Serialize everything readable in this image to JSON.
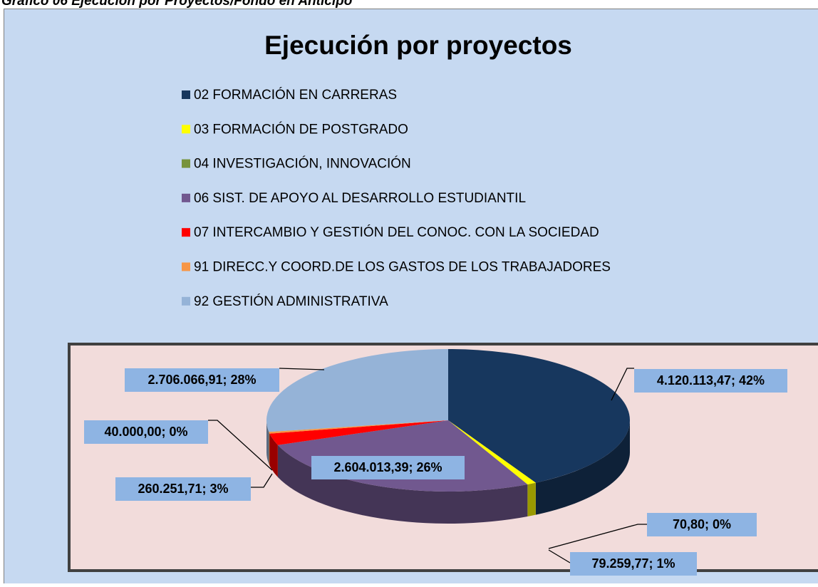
{
  "caption": "Gráfico 06 Ejecución por Proyectos/Fondo en Anticipo",
  "chart_data": {
    "type": "pie",
    "title": "Ejecución por proyectos",
    "categories": [
      "02 FORMACIÓN EN CARRERAS",
      "03 FORMACIÓN DE POSTGRADO",
      "04 INVESTIGACIÓN, INNOVACIÓN",
      "06 SIST. DE APOYO AL DESARROLLO ESTUDIANTIL",
      "07 INTERCAMBIO Y GESTIÓN DEL CONOC. CON LA SOCIEDAD",
      "91 DIRECC.Y COORD.DE LOS GASTOS DE LOS TRABAJADORES",
      "92 GESTIÓN ADMINISTRATIVA"
    ],
    "values": [
      4120113.47,
      79259.77,
      70.8,
      2604013.39,
      260251.71,
      40000.0,
      2706066.91
    ],
    "value_labels": [
      "4.120.113,47; 42%",
      "79.259,77; 1%",
      "70,80; 0%",
      "2.604.013,39; 26%",
      "260.251,71; 3%",
      "40.000,00; 0%",
      "2.706.066,91; 28%"
    ],
    "colors": [
      "#17375e",
      "#ffff00",
      "#77933c",
      "#71588f",
      "#ff0000",
      "#f79646",
      "#95b3d7"
    ]
  }
}
